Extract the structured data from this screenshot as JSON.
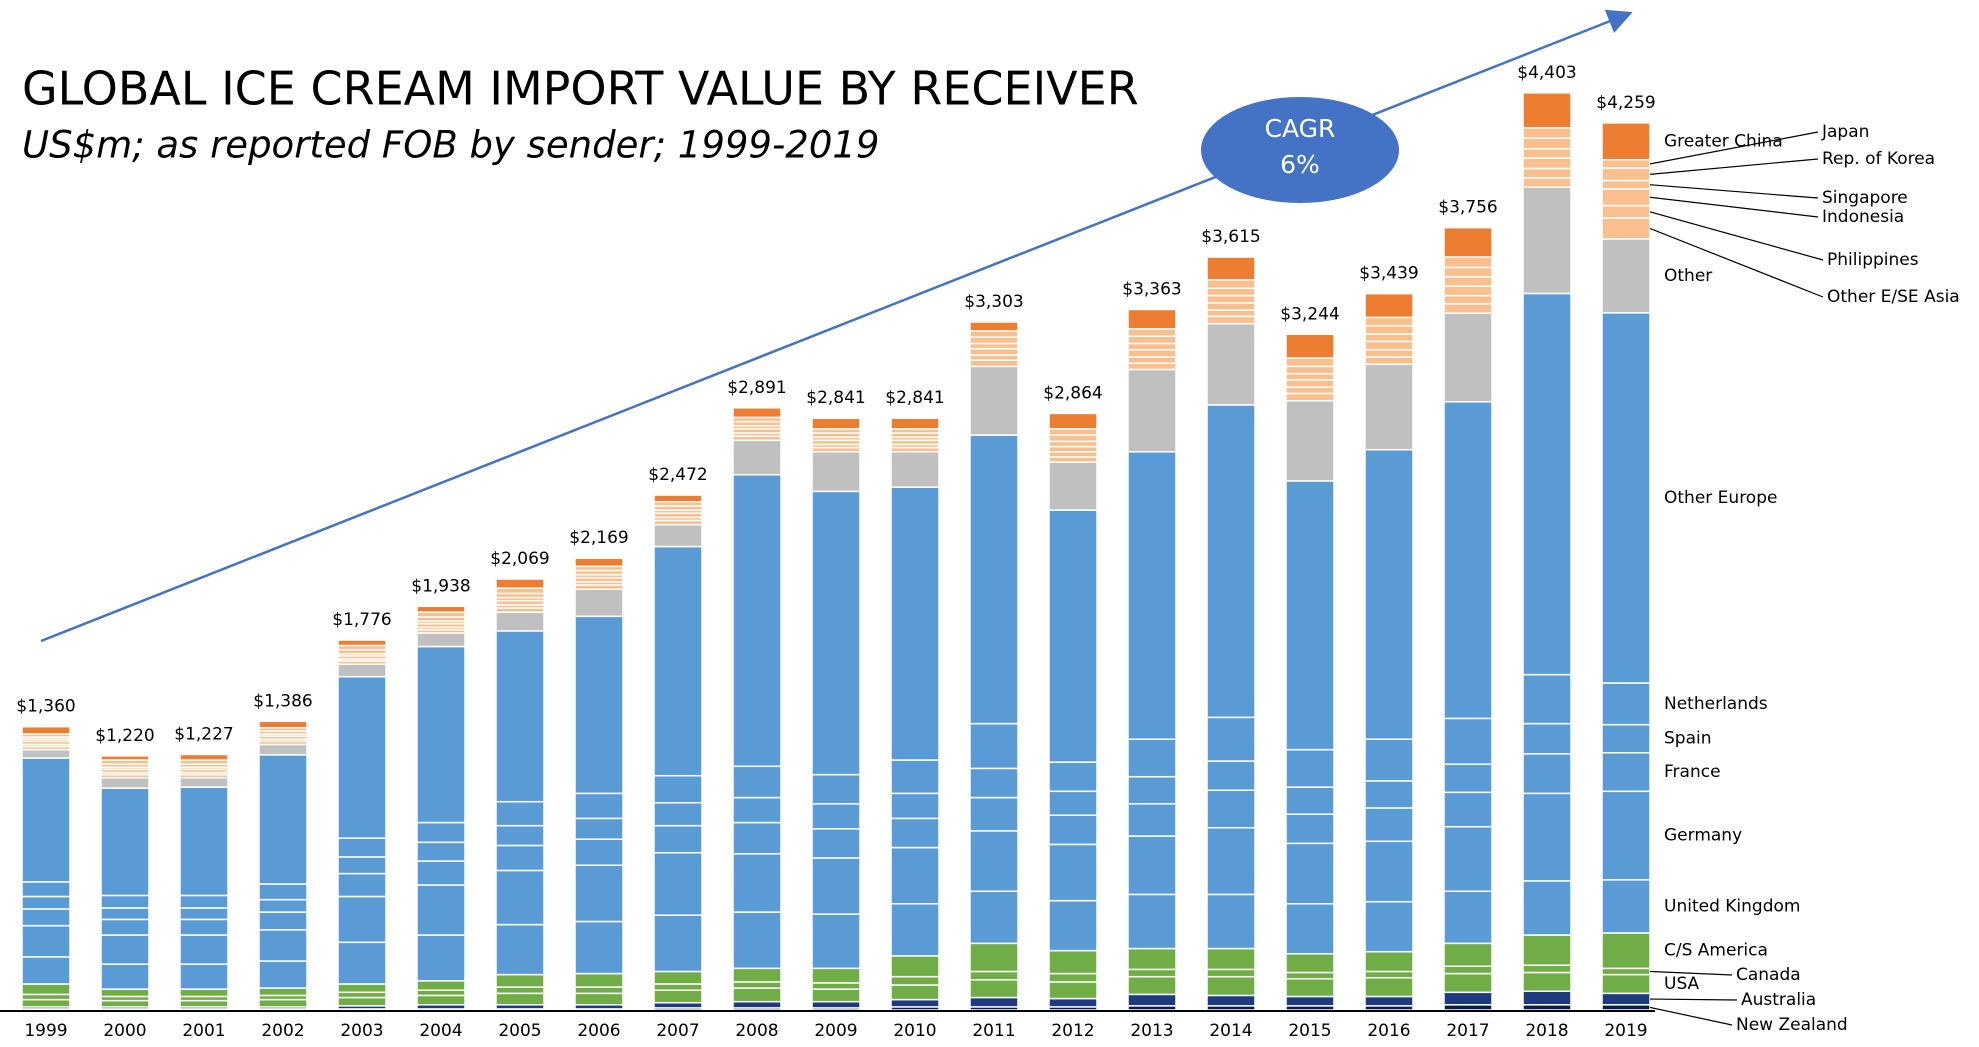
{
  "chart_data": {
    "type": "stacked-bar",
    "title": "GLOBAL ICE CREAM IMPORT VALUE BY RECEIVER",
    "subtitle": "US$m; as reported FOB by sender; 1999-2019",
    "annotation": [
      "CAGR",
      "6%"
    ],
    "categories": [
      "1999",
      "2000",
      "2001",
      "2002",
      "2003",
      "2004",
      "2005",
      "2006",
      "2007",
      "2008",
      "2009",
      "2010",
      "2011",
      "2012",
      "2013",
      "2014",
      "2015",
      "2016",
      "2017",
      "2018",
      "2019"
    ],
    "ylim": [
      0,
      4700
    ],
    "totals": {
      "values": [
        1360,
        1220,
        1227,
        1386,
        1776,
        1938,
        2069,
        2169,
        2472,
        2891,
        2841,
        2841,
        3303,
        2864,
        3363,
        3615,
        3244,
        3439,
        3756,
        4403,
        4259
      ],
      "value_labels": [
        "$1,360",
        "$1,220",
        "$1,227",
        "$1,386",
        "$1,776",
        "$1,938",
        "$2,069",
        "$2,169",
        "$2,472",
        "$2,891",
        "$2,841",
        "$2,841",
        "$3,303",
        "$2,864",
        "$3,363",
        "$3,615",
        "$3,244",
        "$3,439",
        "$3,756",
        "$4,403",
        "$4,259"
      ]
    },
    "series": [
      {
        "name": "New Zealand",
        "color": "#0b1d4d",
        "values": [
          5,
          5,
          5,
          5,
          5,
          5,
          5,
          5,
          10,
          10,
          10,
          15,
          15,
          15,
          20,
          20,
          20,
          20,
          25,
          25,
          25
        ]
      },
      {
        "name": "Australia",
        "color": "#1f3b80",
        "values": [
          10,
          10,
          10,
          10,
          15,
          20,
          20,
          20,
          25,
          30,
          30,
          35,
          45,
          40,
          55,
          50,
          45,
          45,
          60,
          65,
          55
        ]
      },
      {
        "name": "USA",
        "color": "#70ad47",
        "values": [
          35,
          30,
          30,
          35,
          40,
          45,
          55,
          55,
          60,
          65,
          60,
          70,
          85,
          80,
          85,
          90,
          85,
          90,
          90,
          90,
          90
        ]
      },
      {
        "name": "Canada",
        "color": "#70ad47",
        "values": [
          25,
          20,
          20,
          20,
          25,
          25,
          30,
          30,
          30,
          30,
          30,
          40,
          40,
          40,
          35,
          35,
          30,
          30,
          35,
          35,
          30
        ]
      },
      {
        "name": "C/S America",
        "color": "#70ad47",
        "values": [
          50,
          35,
          35,
          35,
          40,
          45,
          60,
          65,
          60,
          65,
          70,
          100,
          135,
          110,
          100,
          100,
          90,
          95,
          110,
          145,
          170
        ]
      },
      {
        "name": "United Kingdom",
        "color": "#5b9bd5",
        "values": [
          130,
          120,
          120,
          130,
          200,
          220,
          240,
          250,
          270,
          270,
          260,
          250,
          250,
          240,
          260,
          260,
          240,
          240,
          250,
          260,
          255
        ]
      },
      {
        "name": "Germany",
        "color": "#5b9bd5",
        "values": [
          150,
          140,
          140,
          150,
          220,
          240,
          260,
          270,
          300,
          280,
          270,
          270,
          290,
          270,
          280,
          320,
          290,
          290,
          310,
          420,
          425
        ]
      },
      {
        "name": "France",
        "color": "#5b9bd5",
        "values": [
          80,
          75,
          75,
          85,
          110,
          115,
          120,
          125,
          130,
          150,
          140,
          140,
          160,
          140,
          155,
          180,
          140,
          160,
          165,
          190,
          185
        ]
      },
      {
        "name": "Spain",
        "color": "#5b9bd5",
        "values": [
          60,
          55,
          55,
          60,
          80,
          90,
          95,
          100,
          110,
          120,
          120,
          120,
          140,
          115,
          130,
          140,
          130,
          130,
          135,
          145,
          135
        ]
      },
      {
        "name": "Netherlands",
        "color": "#5b9bd5",
        "values": [
          70,
          60,
          60,
          75,
          90,
          95,
          115,
          120,
          130,
          150,
          140,
          160,
          215,
          140,
          180,
          210,
          180,
          200,
          220,
          235,
          200
        ]
      },
      {
        "name": "Other Europe",
        "color": "#5b9bd5",
        "values": [
          595,
          515,
          520,
          620,
          775,
          845,
          820,
          850,
          1100,
          1400,
          1360,
          1310,
          1385,
          1210,
          1380,
          1500,
          1290,
          1390,
          1520,
          1830,
          1777
        ]
      },
      {
        "name": "Other",
        "color": "#c0c0c0",
        "values": [
          40,
          50,
          45,
          50,
          60,
          65,
          90,
          130,
          105,
          165,
          190,
          170,
          330,
          230,
          395,
          390,
          385,
          410,
          425,
          510,
          355
        ]
      },
      {
        "name": "Other E/SE Asia",
        "color": "#f9bf8f",
        "values": [
          15,
          15,
          15,
          15,
          15,
          15,
          20,
          20,
          20,
          20,
          20,
          20,
          30,
          25,
          30,
          35,
          35,
          35,
          45,
          45,
          100
        ]
      },
      {
        "name": "Philippines",
        "color": "#f9bf8f",
        "values": [
          10,
          10,
          10,
          10,
          10,
          12,
          15,
          15,
          15,
          15,
          15,
          15,
          25,
          25,
          30,
          30,
          30,
          35,
          40,
          45,
          60
        ]
      },
      {
        "name": "Indonesia",
        "color": "#f9bf8f",
        "values": [
          15,
          15,
          15,
          15,
          15,
          18,
          20,
          20,
          20,
          20,
          20,
          20,
          30,
          25,
          35,
          35,
          35,
          40,
          45,
          50,
          80
        ]
      },
      {
        "name": "Singapore",
        "color": "#f9bf8f",
        "values": [
          10,
          10,
          10,
          10,
          10,
          12,
          15,
          15,
          15,
          15,
          15,
          15,
          25,
          25,
          30,
          35,
          30,
          35,
          45,
          45,
          40
        ]
      },
      {
        "name": "Rep. of Korea",
        "color": "#f9bf8f",
        "values": [
          10,
          15,
          15,
          15,
          20,
          20,
          20,
          20,
          20,
          20,
          20,
          20,
          30,
          30,
          35,
          35,
          35,
          40,
          45,
          50,
          60
        ]
      },
      {
        "name": "Japan",
        "color": "#f9bf8f",
        "values": [
          15,
          20,
          20,
          15,
          20,
          23,
          25,
          20,
          20,
          20,
          20,
          20,
          30,
          30,
          35,
          40,
          40,
          40,
          50,
          50,
          40
        ]
      },
      {
        "name": "Greater China",
        "color": "#ed7d31",
        "values": [
          35,
          20,
          27,
          31,
          26,
          28,
          44,
          39,
          32,
          46,
          51,
          51,
          43,
          74,
          93,
          110,
          114,
          114,
          141,
          168,
          177
        ]
      }
    ]
  }
}
